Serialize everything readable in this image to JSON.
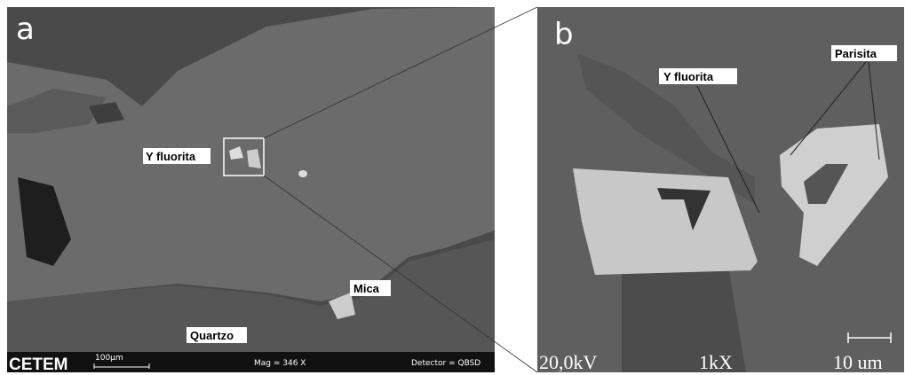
{
  "panel_a": {
    "letter": "a",
    "labels": [
      "Y fluorita",
      "Mica",
      "Quartzo"
    ],
    "info_bar": {
      "logo": "CETEM",
      "scale": "100µm",
      "mag": "Mag =   346 X",
      "detector": "Detector = QBSD"
    }
  },
  "panel_b": {
    "letter": "b",
    "labels": [
      "Y fluorita",
      "Parisita"
    ],
    "info_bar": {
      "voltage": "20,0kV",
      "mag": "1kX",
      "scale": "10 um"
    }
  }
}
